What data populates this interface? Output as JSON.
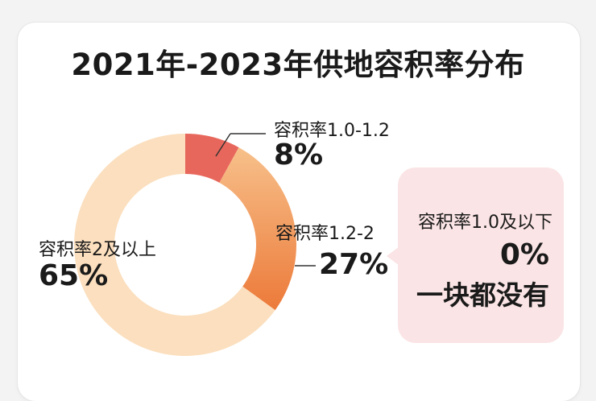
{
  "chart_data": {
    "type": "pie",
    "title": "2021年-2023年供地容积率分布",
    "slices": [
      {
        "label": "容积率1.0-1.2",
        "value": 8,
        "value_label": "8%",
        "color": "#e8675c"
      },
      {
        "label": "容积率1.2-2",
        "value": 27,
        "value_label": "27%",
        "color": "#f3a057"
      },
      {
        "label": "容积率2及以上",
        "value": 65,
        "value_label": "65%",
        "color": "#fbdfbe"
      }
    ],
    "callout": {
      "label": "容积率1.0及以下",
      "value": 0,
      "value_label": "0%",
      "note": "一块都没有"
    }
  }
}
